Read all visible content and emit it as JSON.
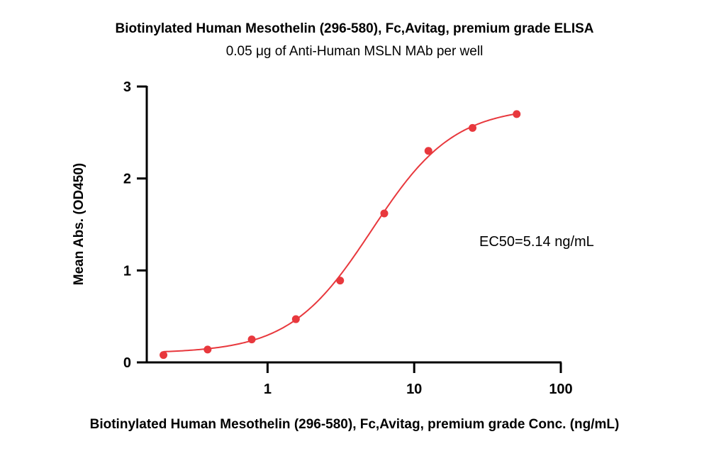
{
  "chart_data": {
    "type": "scatter",
    "title": "Biotinylated Human Mesothelin (296-580), Fc,Avitag, premium grade ELISA",
    "subtitle": "0.05 μg of Anti-Human MSLN MAb per well",
    "xlabel": "Biotinylated Human Mesothelin (296-580), Fc,Avitag, premium grade Conc. (ng/mL)",
    "ylabel": "Mean Abs. (OD450)",
    "x_scale": "log",
    "xlim": [
      0.15,
      100
    ],
    "ylim": [
      0,
      3
    ],
    "x_ticks": [
      1,
      10,
      100
    ],
    "x_tick_labels": [
      "1",
      "10",
      "100"
    ],
    "y_ticks": [
      0,
      1,
      2,
      3
    ],
    "y_tick_labels": [
      "0",
      "1",
      "2",
      "3"
    ],
    "grid": false,
    "series": [
      {
        "x": [
          0.195,
          0.39,
          0.78,
          1.56,
          3.125,
          6.25,
          12.5,
          25,
          50
        ],
        "y": [
          0.08,
          0.14,
          0.25,
          0.47,
          0.89,
          1.62,
          2.3,
          2.55,
          2.7
        ],
        "color": "#e8383d"
      }
    ],
    "fit_curve": {
      "model": "4PL",
      "bottom": 0.1,
      "top": 2.78,
      "ec50": 5.14,
      "hill": 1.55,
      "color": "#e8383d"
    },
    "annotation": "EC50=5.14 ng/mL"
  }
}
